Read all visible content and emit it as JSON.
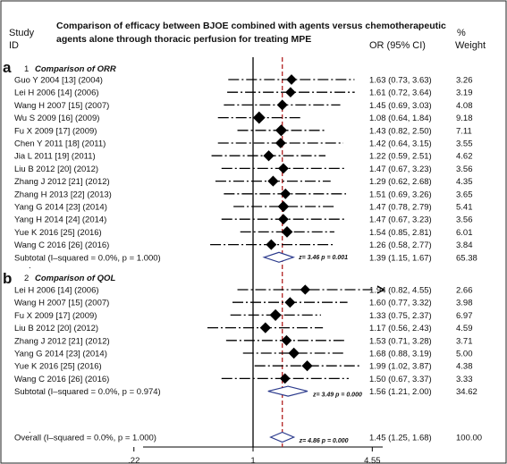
{
  "chart_data": {
    "type": "forest",
    "title_line1": "Comparison of efficacy between BJOE combined with  agents versus chemotherapeutic",
    "title_line2": "agents alone through thoracic perfusion for treating MPE",
    "header": {
      "study_line1": "Study",
      "study_line2": "ID",
      "or_label": "OR (95% CI)",
      "weight_line1": "%",
      "weight_line2": "Weight"
    },
    "x_scale": "log",
    "xlim": [
      0.15,
      7.0
    ],
    "null_line": 1,
    "overall_line": 1.45,
    "x_ticks": [
      {
        "value": 0.22,
        "label": ".22"
      },
      {
        "value": 1,
        "label": "1"
      },
      {
        "value": 4.55,
        "label": "4.55"
      }
    ],
    "groups": [
      {
        "panel": "a",
        "number": "1",
        "name": "Comparison of ORR",
        "studies": [
          {
            "id": "Guo Y 2004 [13] (2004)",
            "or": 1.63,
            "lo": 0.73,
            "hi": 3.63,
            "ci_text": "1.63 (0.73, 3.63)",
            "weight": 3.26,
            "weight_text": "3.26"
          },
          {
            "id": "Lei H 2006 [14] (2006)",
            "or": 1.61,
            "lo": 0.72,
            "hi": 3.64,
            "ci_text": "1.61 (0.72, 3.64)",
            "weight": 3.19,
            "weight_text": "3.19"
          },
          {
            "id": "Wang H 2007 [15] (2007)",
            "or": 1.45,
            "lo": 0.69,
            "hi": 3.03,
            "ci_text": "1.45 (0.69, 3.03)",
            "weight": 4.08,
            "weight_text": "4.08"
          },
          {
            "id": "Wu S 2009 [16] (2009)",
            "or": 1.08,
            "lo": 0.64,
            "hi": 1.84,
            "ci_text": "1.08 (0.64, 1.84)",
            "weight": 9.18,
            "weight_text": "9.18"
          },
          {
            "id": "Fu X 2009 [17] (2009)",
            "or": 1.43,
            "lo": 0.82,
            "hi": 2.5,
            "ci_text": "1.43 (0.82, 2.50)",
            "weight": 7.11,
            "weight_text": "7.11"
          },
          {
            "id": "Chen Y 2011 [18] (2011)",
            "or": 1.42,
            "lo": 0.64,
            "hi": 3.15,
            "ci_text": "1.42 (0.64, 3.15)",
            "weight": 3.55,
            "weight_text": "3.55"
          },
          {
            "id": "Jia L 2011 [19] (2011)",
            "or": 1.22,
            "lo": 0.59,
            "hi": 2.51,
            "ci_text": "1.22 (0.59, 2.51)",
            "weight": 4.62,
            "weight_text": "4.62"
          },
          {
            "id": "Liu B 2012 [20] (2012)",
            "or": 1.47,
            "lo": 0.67,
            "hi": 3.23,
            "ci_text": "1.47 (0.67, 3.23)",
            "weight": 3.56,
            "weight_text": "3.56"
          },
          {
            "id": "Zhang J 2012 [21] (2012)",
            "or": 1.29,
            "lo": 0.62,
            "hi": 2.68,
            "ci_text": "1.29 (0.62, 2.68)",
            "weight": 4.35,
            "weight_text": "4.35"
          },
          {
            "id": "Zhang H 2013 [22] (2013)",
            "or": 1.51,
            "lo": 0.69,
            "hi": 3.26,
            "ci_text": "1.51 (0.69, 3.26)",
            "weight": 3.65,
            "weight_text": "3.65"
          },
          {
            "id": "Yang G 2014 [23] (2014)",
            "or": 1.47,
            "lo": 0.78,
            "hi": 2.79,
            "ci_text": "1.47 (0.78, 2.79)",
            "weight": 5.41,
            "weight_text": "5.41"
          },
          {
            "id": "Yang H 2014 [24] (2014)",
            "or": 1.47,
            "lo": 0.67,
            "hi": 3.23,
            "ci_text": "1.47 (0.67, 3.23)",
            "weight": 3.56,
            "weight_text": "3.56"
          },
          {
            "id": "Yue K 2016 [25] (2016)",
            "or": 1.54,
            "lo": 0.85,
            "hi": 2.81,
            "ci_text": "1.54 (0.85, 2.81)",
            "weight": 6.01,
            "weight_text": "6.01"
          },
          {
            "id": "Wang C 2016 [26] (2016)",
            "or": 1.26,
            "lo": 0.58,
            "hi": 2.77,
            "ci_text": "1.26 (0.58, 2.77)",
            "weight": 3.84,
            "weight_text": "3.84"
          }
        ],
        "subtotal": {
          "label": "Subtotal  (I–squared = 0.0%, p = 1.000)",
          "or": 1.39,
          "lo": 1.15,
          "hi": 1.67,
          "ci_text": "1.39 (1.15, 1.67)",
          "weight_text": "65.38",
          "z_text": "z= 3.46    p = 0.001"
        }
      },
      {
        "panel": "b",
        "number": "2",
        "name": "Comparison of QOL",
        "studies": [
          {
            "id": "Lei H 2006 [14] (2006)",
            "or": 1.94,
            "lo": 0.82,
            "hi": 4.55,
            "ci_text": "1.94 (0.82, 4.55)",
            "weight": 2.66,
            "weight_text": "2.66",
            "arrow": true
          },
          {
            "id": "Wang H 2007 [15] (2007)",
            "or": 1.6,
            "lo": 0.77,
            "hi": 3.32,
            "ci_text": "1.60 (0.77, 3.32)",
            "weight": 3.98,
            "weight_text": "3.98"
          },
          {
            "id": "Fu X 2009 [17] (2009)",
            "or": 1.33,
            "lo": 0.75,
            "hi": 2.37,
            "ci_text": "1.33 (0.75, 2.37)",
            "weight": 6.97,
            "weight_text": "6.97"
          },
          {
            "id": "Liu B 2012 [20] (2012)",
            "or": 1.17,
            "lo": 0.56,
            "hi": 2.43,
            "ci_text": "1.17 (0.56, 2.43)",
            "weight": 4.59,
            "weight_text": "4.59"
          },
          {
            "id": "Zhang J 2012 [21] (2012)",
            "or": 1.53,
            "lo": 0.71,
            "hi": 3.28,
            "ci_text": "1.53 (0.71, 3.28)",
            "weight": 3.71,
            "weight_text": "3.71"
          },
          {
            "id": "Yang G 2014 [23] (2014)",
            "or": 1.68,
            "lo": 0.88,
            "hi": 3.19,
            "ci_text": "1.68 (0.88, 3.19)",
            "weight": 5.0,
            "weight_text": "5.00"
          },
          {
            "id": "Yue K 2016 [25] (2016)",
            "or": 1.99,
            "lo": 1.02,
            "hi": 3.87,
            "ci_text": "1.99 (1.02, 3.87)",
            "weight": 4.38,
            "weight_text": "4.38"
          },
          {
            "id": "Wang C 2016 [26] (2016)",
            "or": 1.5,
            "lo": 0.67,
            "hi": 3.37,
            "ci_text": "1.50 (0.67, 3.37)",
            "weight": 3.33,
            "weight_text": "3.33"
          }
        ],
        "subtotal": {
          "label": "Subtotal  (I–squared = 0.0%, p = 0.974)",
          "or": 1.56,
          "lo": 1.21,
          "hi": 2.0,
          "ci_text": "1.56 (1.21, 2.00)",
          "weight_text": "34.62",
          "z_text": "z= 3.49    p = 0.000"
        }
      }
    ],
    "overall": {
      "label": "Overall  (I–squared = 0.0%, p = 1.000)",
      "or": 1.45,
      "lo": 1.25,
      "hi": 1.68,
      "ci_text": "1.45 (1.25, 1.68)",
      "weight_text": "100.00",
      "z_text": "z=  4.86    p = 0.000"
    },
    "colors": {
      "diamond_fill": "#ffffff",
      "diamond_stroke": "#2b3a8c",
      "overall_line": "#b22222",
      "marker": "#000000"
    },
    "border": true,
    "separator_mark": "."
  }
}
